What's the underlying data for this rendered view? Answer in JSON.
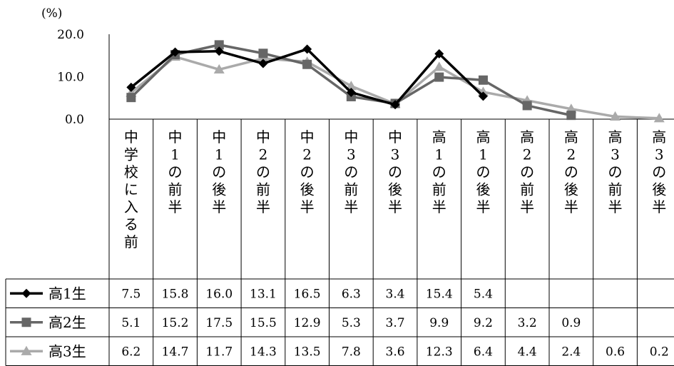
{
  "chart_data": {
    "type": "line",
    "unit_label": "(%)",
    "y_ticks": [
      "20.0",
      "10.0",
      "0.0"
    ],
    "ylim": [
      0,
      20
    ],
    "categories": [
      "中学校に入る前",
      "中1の前半",
      "中1の後半",
      "中2の前半",
      "中2の後半",
      "中3の前半",
      "中3の後半",
      "高1の前半",
      "高1の後半",
      "高2の前半",
      "高2の後半",
      "高3の前半",
      "高3の後半"
    ],
    "series": [
      {
        "name": "高1生",
        "color": "#000000",
        "marker": "diamond",
        "values": [
          7.5,
          15.8,
          16.0,
          13.1,
          16.5,
          6.3,
          3.4,
          15.4,
          5.4,
          null,
          null,
          null,
          null
        ],
        "labels": [
          "7.5",
          "15.8",
          "16.0",
          "13.1",
          "16.5",
          "6.3",
          "3.4",
          "15.4",
          "5.4",
          "",
          "",
          "",
          ""
        ]
      },
      {
        "name": "高2生",
        "color": "#666666",
        "marker": "square",
        "values": [
          5.1,
          15.2,
          17.5,
          15.5,
          12.9,
          5.3,
          3.7,
          9.9,
          9.2,
          3.2,
          0.9,
          null,
          null
        ],
        "labels": [
          "5.1",
          "15.2",
          "17.5",
          "15.5",
          "12.9",
          "5.3",
          "3.7",
          "9.9",
          "9.2",
          "3.2",
          "0.9",
          "",
          ""
        ]
      },
      {
        "name": "高3生",
        "color": "#aaaaaa",
        "marker": "triangle",
        "values": [
          6.2,
          14.7,
          11.7,
          14.3,
          13.5,
          7.8,
          3.6,
          12.3,
          6.4,
          4.4,
          2.4,
          0.6,
          0.2
        ],
        "labels": [
          "6.2",
          "14.7",
          "11.7",
          "14.3",
          "13.5",
          "7.8",
          "3.6",
          "12.3",
          "6.4",
          "4.4",
          "2.4",
          "0.6",
          "0.2"
        ]
      }
    ]
  }
}
